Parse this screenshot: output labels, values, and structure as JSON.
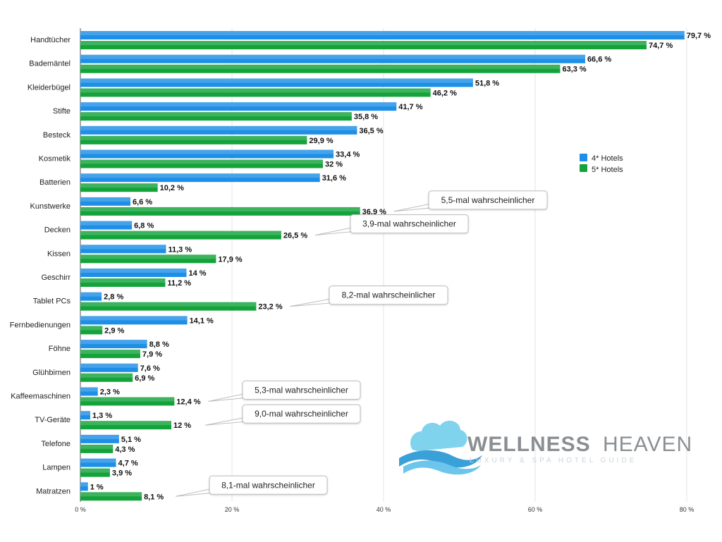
{
  "chart_data": {
    "type": "bar",
    "orientation": "horizontal",
    "categories": [
      "Handtücher",
      "Bademäntel",
      "Kleiderbügel",
      "Stifte",
      "Besteck",
      "Kosmetik",
      "Batterien",
      "Kunstwerke",
      "Decken",
      "Kissen",
      "Geschirr",
      "Tablet PCs",
      "Fernbedienungen",
      "Föhne",
      "Glühbirnen",
      "Kaffeemaschinen",
      "TV-Geräte",
      "Telefone",
      "Lampen",
      "Matratzen"
    ],
    "series": [
      {
        "name": "4* Hotels",
        "color": "#1e8fe6",
        "values": [
          79.7,
          66.6,
          51.8,
          41.7,
          36.5,
          33.4,
          31.6,
          6.6,
          6.8,
          11.3,
          14,
          2.8,
          14.1,
          8.8,
          7.6,
          2.3,
          1.3,
          5.1,
          4.7,
          1
        ],
        "labels": [
          "79,7 %",
          "66,6 %",
          "51,8 %",
          "41,7 %",
          "36,5 %",
          "33,4 %",
          "31,6 %",
          "6,6 %",
          "6,8 %",
          "11,3 %",
          "14 %",
          "2,8 %",
          "14,1 %",
          "8,8 %",
          "7,6 %",
          "2,3 %",
          "1,3 %",
          "5,1 %",
          "4,7 %",
          "1 %"
        ]
      },
      {
        "name": "5* Hotels",
        "color": "#13a33a",
        "values": [
          74.7,
          63.3,
          46.2,
          35.8,
          29.9,
          32,
          10.2,
          36.9,
          26.5,
          17.9,
          11.2,
          23.2,
          2.9,
          7.9,
          6.9,
          12.4,
          12,
          4.3,
          3.9,
          8.1
        ],
        "labels": [
          "74,7 %",
          "63,3 %",
          "46,2 %",
          "35,8 %",
          "29,9 %",
          "32 %",
          "10,2 %",
          "36,9 %",
          "26,5 %",
          "17,9 %",
          "11,2 %",
          "23,2 %",
          "2,9 %",
          "7,9 %",
          "6,9 %",
          "12,4 %",
          "12 %",
          "4,3 %",
          "3,9 %",
          "8,1 %"
        ]
      }
    ],
    "xlim": [
      0,
      80
    ],
    "x_ticks": [
      0,
      20,
      40,
      60,
      80
    ],
    "x_tick_labels": [
      "0 %",
      "20 %",
      "40 %",
      "60 %",
      "80 %"
    ],
    "grid": "vertical",
    "legend_position": "right",
    "annotations": [
      {
        "category": "Kunstwerke",
        "text": "5,5-mal wahrscheinlicher"
      },
      {
        "category": "Decken",
        "text": "3,9-mal wahrscheinlicher"
      },
      {
        "category": "Tablet PCs",
        "text": "8,2-mal wahrscheinlicher"
      },
      {
        "category": "Kaffeemaschinen",
        "text": "5,3-mal wahrscheinlicher"
      },
      {
        "category": "TV-Geräte",
        "text": "9,0-mal wahrscheinlicher"
      },
      {
        "category": "Matratzen",
        "text": "8,1-mal wahrscheinlicher"
      }
    ]
  },
  "brand": {
    "name_part1": "WELLNESS",
    "name_part2": "HEAVEN",
    "tagline": "LUXURY & SPA HOTEL GUIDE",
    "icon": "cloud-wave-logo-icon"
  }
}
